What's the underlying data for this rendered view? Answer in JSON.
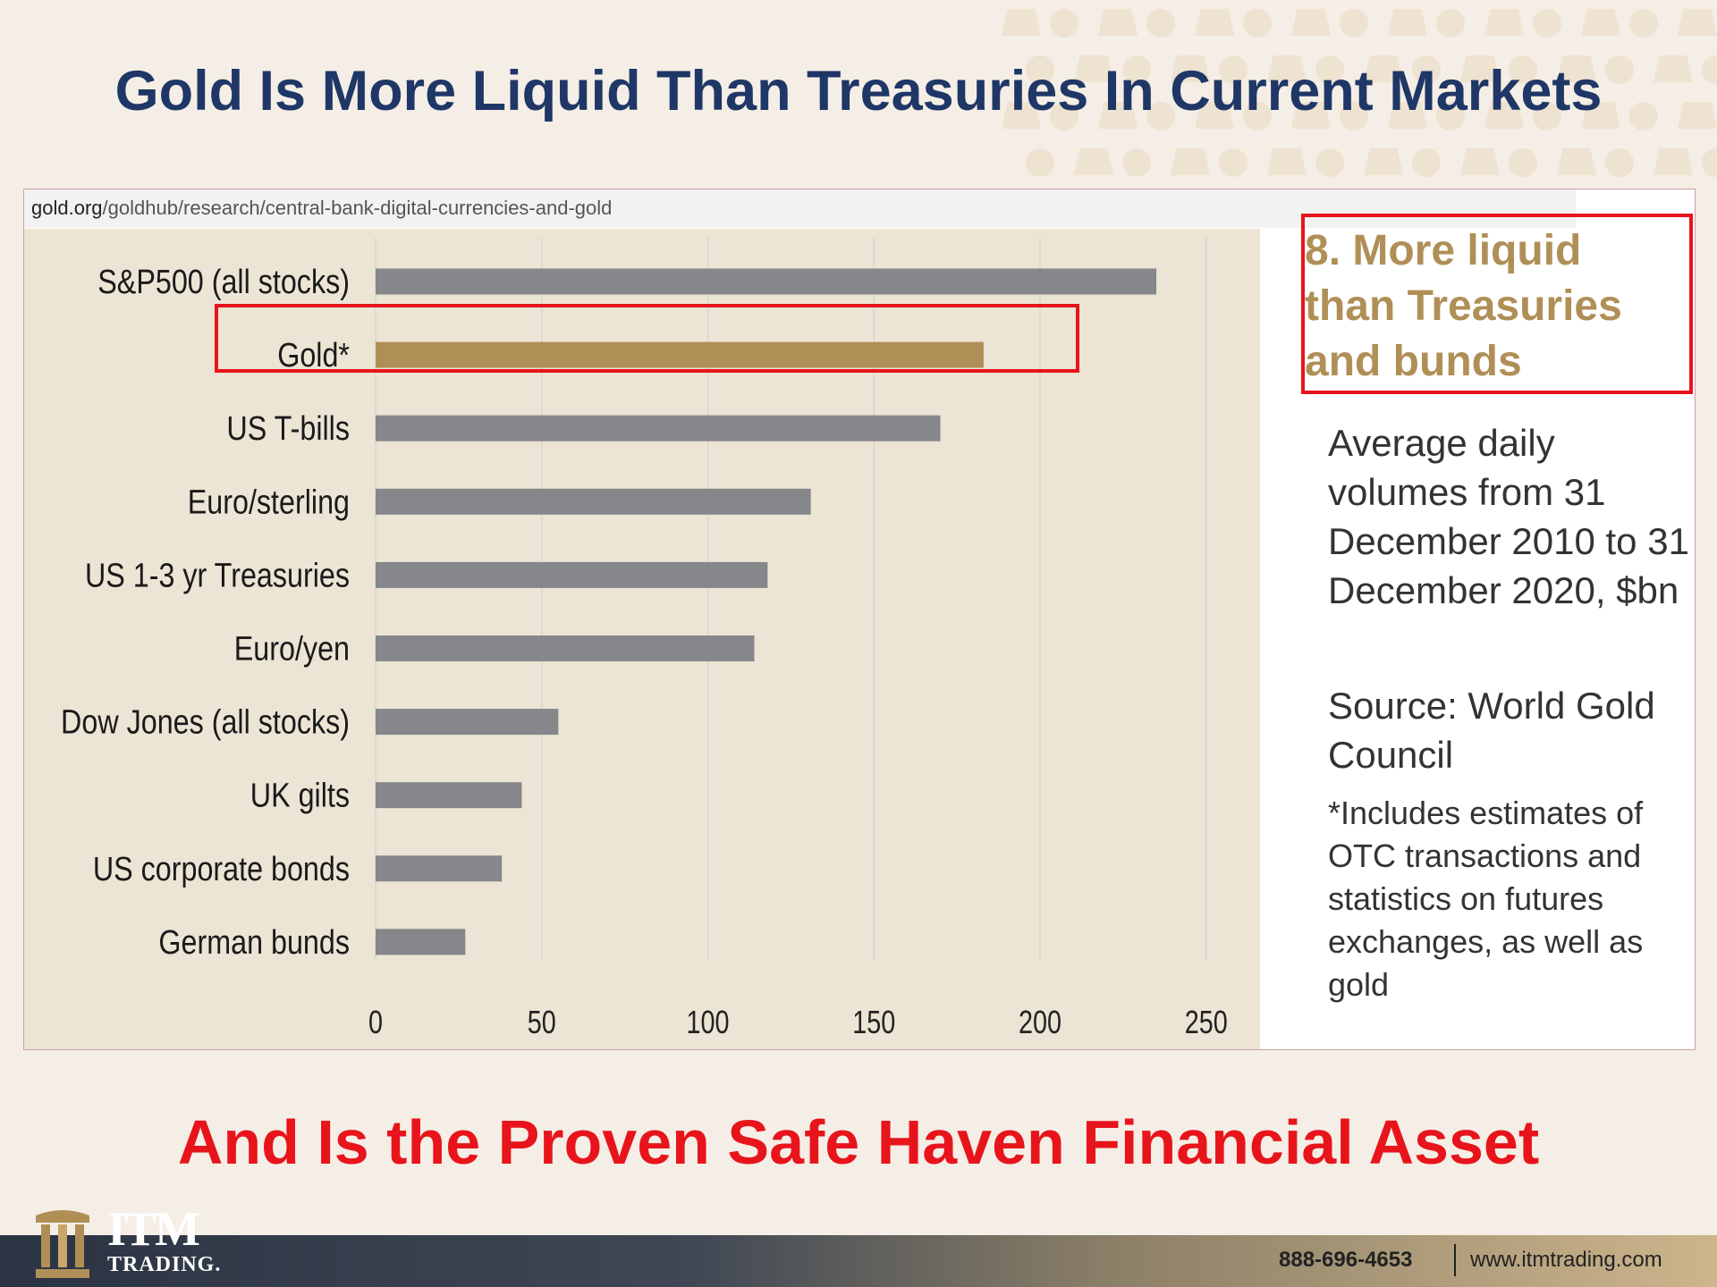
{
  "headline": "Gold Is More Liquid Than Treasuries In Current Markets",
  "subheadline": "And Is the Proven Safe Haven Financial Asset",
  "browser": {
    "url_domain": "gold.org",
    "url_path": "/goldhub/research/central-bank-digital-currencies-and-gold"
  },
  "side_panel": {
    "title_lines": [
      "8. More liquid",
      "than Treasuries",
      "and bunds"
    ],
    "description": "Average daily volumes from 31 December 2010 to 31 December 2020, $bn",
    "source": "Source: World Gold Council",
    "note": "*Includes estimates of OTC transactions and statistics on futures exchanges, as well as gold"
  },
  "footer": {
    "phone": "888-696-4653",
    "website": "www.itmtrading.com"
  },
  "logo": {
    "brand": "ITM",
    "sub": "TRADING."
  },
  "colors": {
    "highlight": "#b08f57",
    "bar": "#85878a",
    "accent_red": "#e8141c",
    "navy": "#1f3766"
  },
  "chart_data": {
    "type": "bar",
    "orientation": "horizontal",
    "categories": [
      "S&P500 (all stocks)",
      "Gold*",
      "US T-bills",
      "Euro/sterling",
      "US 1-3 yr Treasuries",
      "Euro/yen",
      "Dow Jones (all stocks)",
      "UK gilts",
      "US corporate bonds",
      "German bunds"
    ],
    "values": [
      235,
      183,
      170,
      131,
      118,
      114,
      55,
      44,
      38,
      27
    ],
    "highlight_category": "Gold*",
    "xlim": [
      0,
      250
    ],
    "xticks": [
      "0",
      "50",
      "100",
      "150",
      "200",
      "250"
    ],
    "grid": true
  }
}
